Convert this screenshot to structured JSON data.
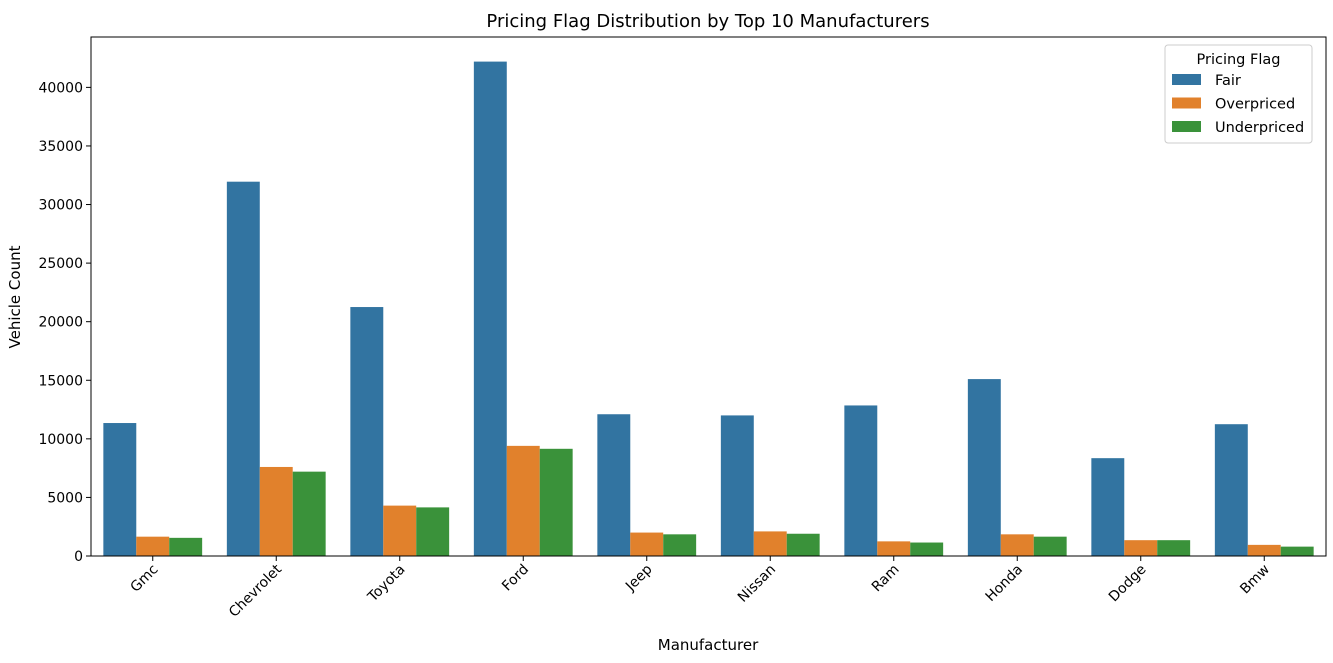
{
  "chart_data": {
    "type": "bar",
    "title": "Pricing Flag Distribution by Top 10 Manufacturers",
    "xlabel": "Manufacturer",
    "ylabel": "Vehicle Count",
    "categories": [
      "Gmc",
      "Chevrolet",
      "Toyota",
      "Ford",
      "Jeep",
      "Nissan",
      "Ram",
      "Honda",
      "Dodge",
      "Bmw"
    ],
    "series": [
      {
        "name": "Fair",
        "color": "#3274a1",
        "values": [
          11350,
          31950,
          21250,
          42200,
          12100,
          12000,
          12850,
          15100,
          8350,
          11250
        ]
      },
      {
        "name": "Overpriced",
        "color": "#e1812c",
        "values": [
          1650,
          7600,
          4300,
          9400,
          2000,
          2100,
          1250,
          1850,
          1350,
          950
        ]
      },
      {
        "name": "Underpriced",
        "color": "#3a923a",
        "values": [
          1550,
          7200,
          4150,
          9150,
          1850,
          1900,
          1150,
          1650,
          1350,
          800
        ]
      }
    ],
    "ylim": [
      0,
      44300
    ],
    "yticks": [
      0,
      5000,
      10000,
      15000,
      20000,
      25000,
      30000,
      35000,
      40000
    ],
    "legend": {
      "title": "Pricing Flag",
      "position": "top-right"
    },
    "grid": false
  }
}
